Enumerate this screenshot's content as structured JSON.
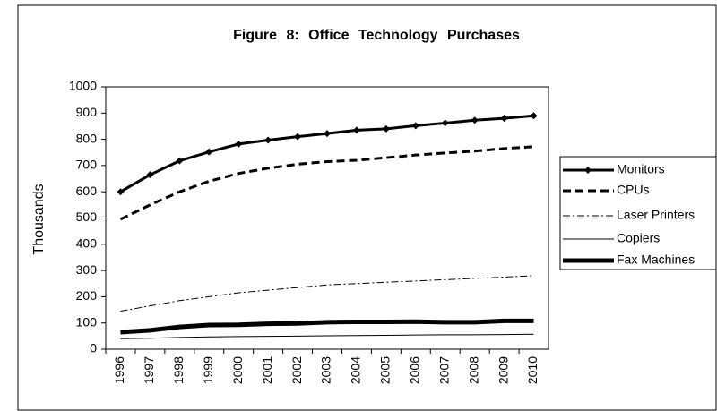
{
  "chart_data": {
    "type": "line",
    "title": "Figure 8: Office Technology Purchases",
    "y_label": "Thousands",
    "categories": [
      "1996",
      "1997",
      "1998",
      "1999",
      "2000",
      "2001",
      "2002",
      "2003",
      "2004",
      "2005",
      "2006",
      "2007",
      "2008",
      "2009",
      "2010"
    ],
    "series": [
      {
        "name": "Monitors",
        "color": "#000000",
        "width": 3,
        "dash": "none",
        "marker": "diamond",
        "values": [
          600,
          665,
          718,
          752,
          782,
          797,
          810,
          822,
          835,
          840,
          852,
          862,
          873,
          880,
          890
        ]
      },
      {
        "name": "CPUs",
        "color": "#000000",
        "width": 3,
        "dash": "9 5",
        "marker": "none",
        "values": [
          495,
          550,
          600,
          640,
          670,
          690,
          705,
          715,
          720,
          730,
          740,
          748,
          755,
          765,
          772
        ]
      },
      {
        "name": "Laser Printers",
        "color": "#000000",
        "width": 1,
        "dash": "8 3 2 3",
        "marker": "none",
        "values": [
          145,
          165,
          185,
          200,
          215,
          225,
          235,
          245,
          250,
          255,
          260,
          265,
          270,
          275,
          280
        ]
      },
      {
        "name": "Copiers",
        "color": "#000000",
        "width": 1,
        "dash": "none",
        "marker": "none",
        "values": [
          40,
          42,
          45,
          47,
          48,
          49,
          50,
          51,
          52,
          53,
          54,
          55,
          55,
          56,
          57
        ]
      },
      {
        "name": "Fax Machines",
        "color": "#000000",
        "width": 5,
        "dash": "none",
        "marker": "none",
        "values": [
          65,
          72,
          85,
          92,
          93,
          97,
          98,
          103,
          104,
          104,
          105,
          103,
          103,
          108,
          108
        ]
      }
    ],
    "ylim": [
      0,
      1000
    ],
    "yticks": [
      0,
      100,
      200,
      300,
      400,
      500,
      600,
      700,
      800,
      900,
      1000
    ],
    "grid": false,
    "legend": "right"
  }
}
